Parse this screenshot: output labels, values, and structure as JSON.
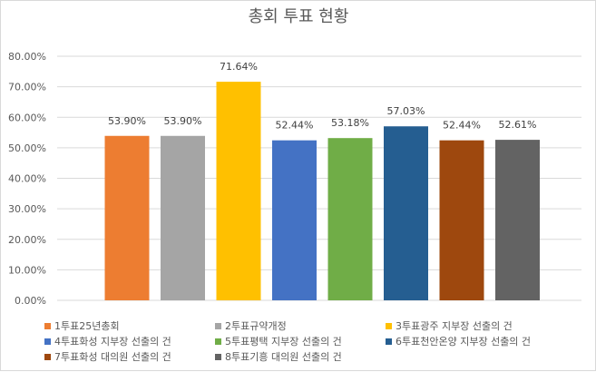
{
  "chart_data": {
    "type": "bar",
    "title": "총회 투표 현황",
    "xlabel": "",
    "ylabel": "",
    "ylim": [
      0,
      80
    ],
    "yticks": [
      "0.00%",
      "10.00%",
      "20.00%",
      "30.00%",
      "40.00%",
      "50.00%",
      "60.00%",
      "70.00%",
      "80.00%"
    ],
    "grid": true,
    "legend_position": "bottom",
    "categories": [
      "1투표25년총회",
      "2투표규약개정",
      "3투표광주 지부장 선출의 건",
      "4투표화성 지부장 선출의 건",
      "5투표평택 지부장 선출의 건",
      "6투표천안온양 지부장 선출의 건",
      "7투표화성 대의원 선출의 건",
      "8투표기흥 대의원 선출의 건"
    ],
    "values": [
      53.9,
      53.9,
      71.64,
      52.44,
      53.18,
      57.03,
      52.44,
      52.61
    ],
    "data_labels": [
      "53.90%",
      "53.90%",
      "71.64%",
      "52.44%",
      "53.18%",
      "57.03%",
      "52.44%",
      "52.61%"
    ],
    "colors": [
      "#ed7d31",
      "#a5a5a5",
      "#ffc000",
      "#4472c4",
      "#70ad47",
      "#255e91",
      "#9e480e",
      "#636363"
    ]
  }
}
